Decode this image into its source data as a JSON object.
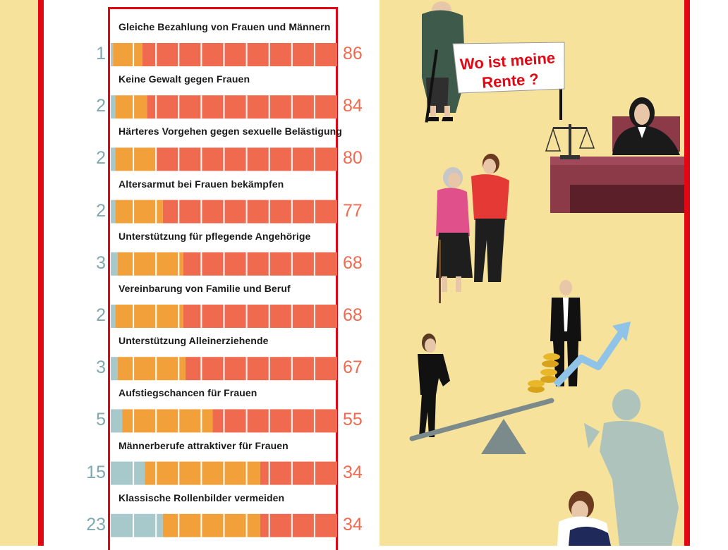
{
  "colors": {
    "rejection": "#a8c9cc",
    "partial": "#f2a13a",
    "agreement": "#ef6a4f",
    "frame_red": "#e30613",
    "background_yellow": "#f6e29a",
    "number_left": "#7fa9b0",
    "number_right": "#ef6a4f"
  },
  "chart_data": {
    "type": "bar",
    "orientation": "horizontal",
    "stacked": true,
    "categories": [
      "Gleiche Bezahlung von Frauen und Männern",
      "Keine Gewalt gegen Frauen",
      "Härteres Vorgehen gegen sexuelle Belästigung",
      "Altersarmut bei Frauen bekämpfen",
      "Unterstützung für pflegende Angehörige",
      "Vereinbarung von Familie und Beruf",
      "Unterstützung Alleinerziehende",
      "Aufstiegschancen für Frauen",
      "Männerberufe attraktiver für Frauen",
      "Klassische Rollenbilder vermeiden"
    ],
    "left_values": [
      "1",
      "2",
      "2",
      "2",
      "3",
      "2",
      "3",
      "5",
      "15",
      "23"
    ],
    "right_values": [
      "86",
      "84",
      "80",
      "77",
      "68",
      "68",
      "67",
      "55",
      "34",
      "34"
    ],
    "series": [
      {
        "values": [
          1,
          2,
          2,
          2,
          3,
          2,
          3,
          5,
          15,
          23
        ]
      },
      {
        "values": [
          13,
          14,
          18,
          21,
          29,
          30,
          30,
          40,
          51,
          43
        ]
      },
      {
        "values": [
          86,
          84,
          80,
          77,
          68,
          68,
          67,
          55,
          34,
          34
        ]
      }
    ],
    "xlim": [
      0,
      100
    ]
  },
  "illustration": {
    "banner_line1": "Wo ist meine",
    "banner_line2": "Rente ?",
    "icons": [
      "elderly-protester-icon",
      "judge-icon",
      "scales-icon",
      "caregiver-icon",
      "businessman-icon",
      "businesswoman-icon",
      "seesaw-icon",
      "coins-icon",
      "rising-arrow-icon",
      "shouting-shadow-icon",
      "sitting-woman-icon"
    ]
  }
}
